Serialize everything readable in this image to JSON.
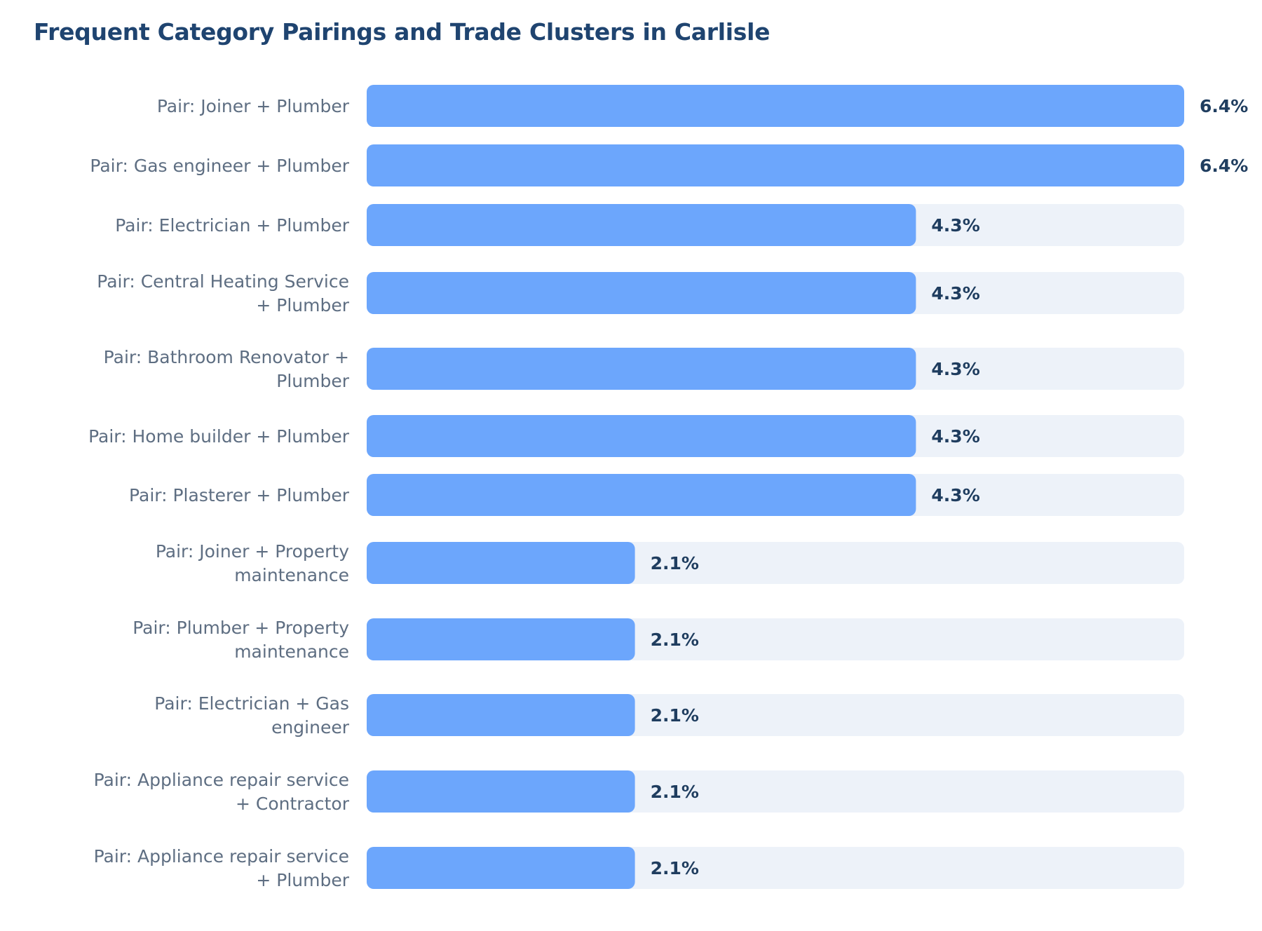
{
  "chart_data": {
    "type": "bar",
    "orientation": "horizontal",
    "title": "Frequent Category Pairings and Trade Clusters in Carlisle",
    "categories": [
      "Pair: Joiner + Plumber",
      "Pair: Gas engineer + Plumber",
      "Pair: Electrician + Plumber",
      "Pair: Central Heating Service + Plumber",
      "Pair: Bathroom Renovator + Plumber",
      "Pair: Home builder + Plumber",
      "Pair: Plasterer + Plumber",
      "Pair: Joiner + Property maintenance",
      "Pair: Plumber + Property maintenance",
      "Pair: Electrician + Gas engineer",
      "Pair: Appliance repair service + Contractor",
      "Pair: Appliance repair service + Plumber"
    ],
    "values": [
      6.4,
      6.4,
      4.3,
      4.3,
      4.3,
      4.3,
      4.3,
      2.1,
      2.1,
      2.1,
      2.1,
      2.1
    ],
    "value_labels": [
      "6.4%",
      "6.4%",
      "4.3%",
      "4.3%",
      "4.3%",
      "4.3%",
      "4.3%",
      "2.1%",
      "2.1%",
      "2.1%",
      "2.1%",
      "2.1%"
    ],
    "unit": "%",
    "xlim": [
      0,
      6.4
    ],
    "xlabel": "",
    "ylabel": "",
    "grid": false,
    "legend": false,
    "colors": {
      "bar": "#6ca6fc",
      "track": "#edf2f9",
      "title": "#1f4470",
      "category_text": "#5e6e82",
      "value_text": "#1f3d5f"
    }
  }
}
